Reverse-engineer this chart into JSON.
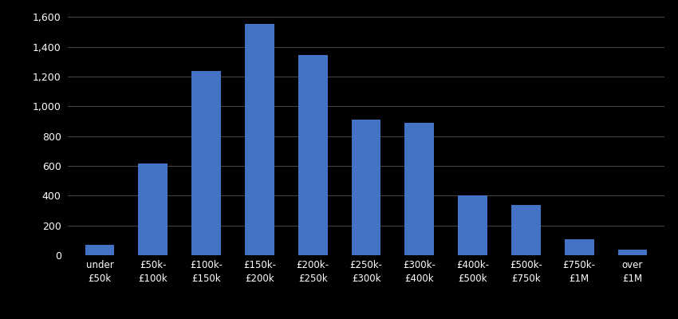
{
  "categories": [
    "under\n£50k",
    "£50k-\n£100k",
    "£100k-\n£150k",
    "£150k-\n£200k",
    "£200k-\n£250k",
    "£250k-\n£300k",
    "£300k-\n£400k",
    "£400k-\n£500k",
    "£500k-\n£750k",
    "£750k-\n£1M",
    "over\n£1M"
  ],
  "values": [
    70,
    615,
    1235,
    1555,
    1345,
    910,
    890,
    400,
    335,
    105,
    40
  ],
  "bar_color": "#4472C4",
  "background_color": "#000000",
  "text_color": "#ffffff",
  "grid_color": "#555555",
  "ylim": [
    0,
    1650
  ],
  "yticks": [
    0,
    200,
    400,
    600,
    800,
    1000,
    1200,
    1400,
    1600
  ],
  "bar_width": 0.55,
  "figsize": [
    8.5,
    4.0
  ],
  "dpi": 100
}
